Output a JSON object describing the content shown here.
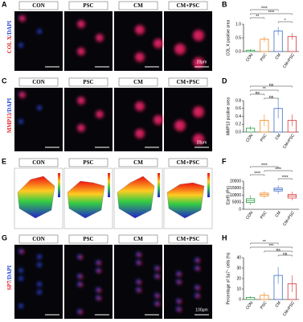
{
  "figure": {
    "panels": [
      {
        "letter": "A",
        "stain": [
          "COL X",
          "/DAPI"
        ],
        "columns": [
          "CON",
          "PSC",
          "CM",
          "CM+PSC"
        ],
        "scale_bar": "20μm"
      },
      {
        "letter": "C",
        "stain": [
          "MMP13",
          "/DAPI"
        ],
        "columns": [
          "CON",
          "PSC",
          "CM",
          "CM+PSC"
        ],
        "scale_bar": "20μm"
      },
      {
        "letter": "E",
        "columns": [
          "CON",
          "PSC",
          "CM",
          "CM+PSC"
        ]
      },
      {
        "letter": "G",
        "stain": [
          "SP7",
          "/DAPI"
        ],
        "columns": [
          "CON",
          "PSC",
          "CM",
          "CM+PSC"
        ],
        "scale_bar": "100μm"
      }
    ]
  },
  "chart_data": [
    {
      "type": "bar",
      "panel": "B",
      "y_label": "COL X positive area",
      "categories": [
        "CON",
        "PSC",
        "CM",
        "CM+PSC"
      ],
      "colors": [
        "#2e9e4a",
        "#f08a24",
        "#3a6fc4",
        "#d93a3a"
      ],
      "values": [
        0.05,
        0.45,
        0.75,
        0.55
      ],
      "errors": [
        0.04,
        0.1,
        0.15,
        0.12
      ],
      "ylim": [
        0,
        1
      ],
      "yticks": [
        {
          "value": 0,
          "label": "0.0"
        },
        {
          "value": 0.5,
          "label": "0.5"
        },
        {
          "value": 1,
          "label": "1.0"
        }
      ],
      "annotations": [
        "****",
        "****",
        "**",
        "*"
      ]
    },
    {
      "type": "bar",
      "panel": "D",
      "y_label": "MMP13 positive area",
      "categories": [
        "CON",
        "PSC",
        "CM",
        "CM+PSC"
      ],
      "colors": [
        "#2e9e4a",
        "#f08a24",
        "#3a6fc4",
        "#d93a3a"
      ],
      "values": [
        0.1,
        0.3,
        0.6,
        0.3
      ],
      "errors": [
        0.05,
        0.15,
        0.25,
        0.15
      ],
      "ylim": [
        0,
        0.8
      ],
      "yticks": [
        {
          "value": 0,
          "label": "0.0"
        },
        0.2,
        0.4,
        0.6,
        0.8
      ],
      "annotations": [
        "ns",
        "**",
        "ns",
        "ns"
      ]
    },
    {
      "type": "box",
      "panel": "F",
      "y_label": "E(eff) (Pa)",
      "categories": [
        "CON",
        "PSC",
        "CM",
        "CM+PSC"
      ],
      "colors": [
        "#2e9e4a",
        "#f08a24",
        "#3a6fc4",
        "#d93a3a"
      ],
      "boxes": [
        {
          "min": 3000,
          "q1": 4800,
          "median": 6200,
          "q3": 7500,
          "max": 10000
        },
        {
          "min": 8000,
          "q1": 9500,
          "median": 10500,
          "q3": 11500,
          "max": 13000
        },
        {
          "min": 11000,
          "q1": 13000,
          "median": 14000,
          "q3": 15000,
          "max": 17000
        },
        {
          "min": 6500,
          "q1": 8000,
          "median": 9500,
          "q3": 10500,
          "max": 12500
        }
      ],
      "ylim": [
        0,
        20000
      ],
      "yticks": [
        0,
        5000,
        10000,
        15000,
        20000
      ],
      "annotations": [
        "****",
        "****",
        "****",
        "****"
      ]
    },
    {
      "type": "bar",
      "panel": "H",
      "y_label": "Percentage of Sp7⁺ cells (%)",
      "categories": [
        "CON",
        "PSC",
        "CM",
        "CM+PSC"
      ],
      "colors": [
        "#2e9e4a",
        "#f08a24",
        "#3a6fc4",
        "#d93a3a"
      ],
      "values": [
        2,
        4,
        23,
        15
      ],
      "errors": [
        1,
        3,
        8,
        8
      ],
      "ylim": [
        0,
        40
      ],
      "yticks": [
        0,
        10,
        20,
        30,
        40
      ],
      "annotations": [
        "**",
        "***",
        "ns",
        "ns"
      ]
    }
  ]
}
